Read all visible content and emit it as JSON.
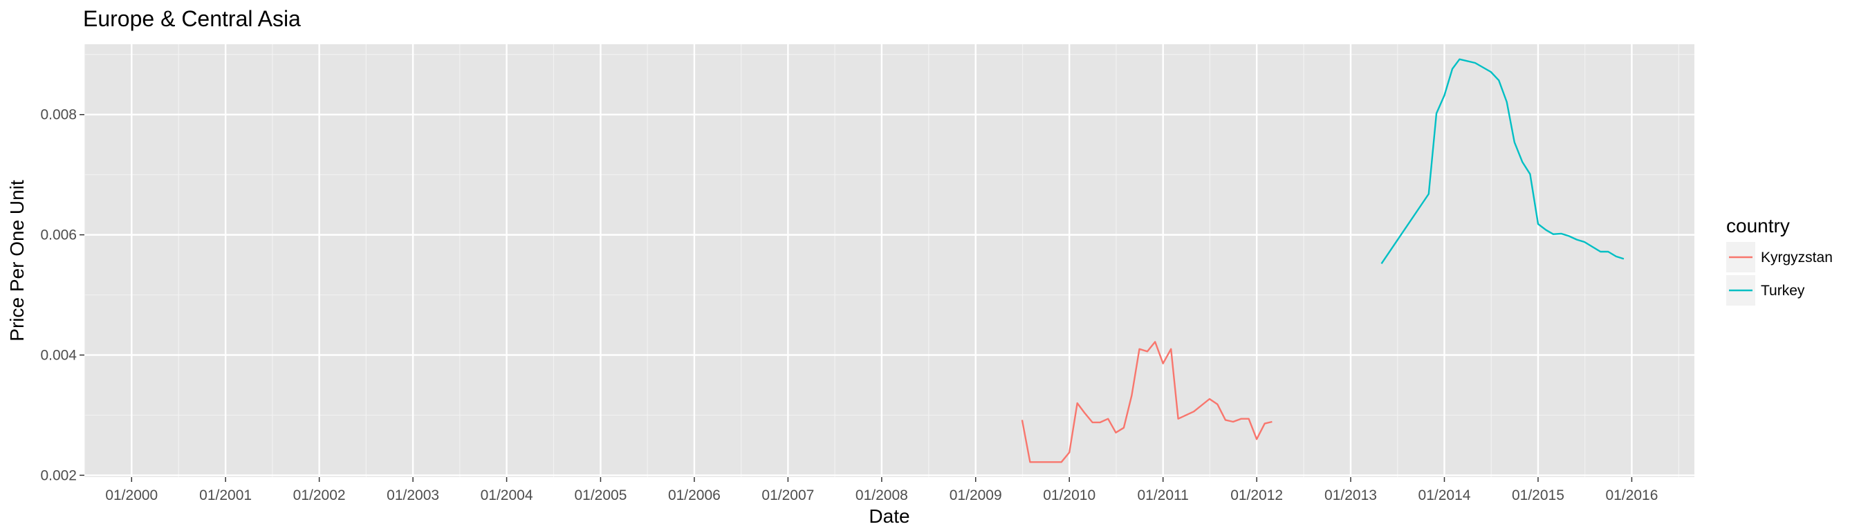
{
  "chart_data": {
    "type": "line",
    "title": "Europe & Central Asia",
    "xlabel": "Date",
    "ylabel": "Price Per One Unit",
    "xlim": [
      "1999-07-01",
      "2016-09-01"
    ],
    "ylim": [
      0.00197,
      0.00917
    ],
    "x_ticks": [
      "01/2000",
      "01/2001",
      "01/2002",
      "01/2003",
      "01/2004",
      "01/2005",
      "01/2006",
      "01/2007",
      "01/2008",
      "01/2009",
      "01/2010",
      "01/2011",
      "01/2012",
      "01/2013",
      "01/2014",
      "01/2015",
      "01/2016"
    ],
    "y_ticks": [
      "0.002",
      "0.004",
      "0.006",
      "0.008"
    ],
    "grid": true,
    "legend": {
      "title": "country",
      "position": "right"
    },
    "series": [
      {
        "name": "Kyrgyzstan",
        "color": "#F8766D",
        "points": [
          [
            "2009-07-01",
            0.00292
          ],
          [
            "2009-08-01",
            0.00222
          ],
          [
            "2009-09-01",
            0.00222
          ],
          [
            "2009-10-01",
            0.00222
          ],
          [
            "2009-11-01",
            0.00222
          ],
          [
            "2009-12-01",
            0.00222
          ],
          [
            "2010-01-01",
            0.00238
          ],
          [
            "2010-02-01",
            0.0032
          ],
          [
            "2010-03-01",
            0.00304
          ],
          [
            "2010-04-01",
            0.00288
          ],
          [
            "2010-05-01",
            0.00288
          ],
          [
            "2010-06-01",
            0.00294
          ],
          [
            "2010-07-01",
            0.00271
          ],
          [
            "2010-08-01",
            0.00279
          ],
          [
            "2010-09-01",
            0.00333
          ],
          [
            "2010-10-01",
            0.0041
          ],
          [
            "2010-11-01",
            0.00406
          ],
          [
            "2010-12-01",
            0.00422
          ],
          [
            "2011-01-01",
            0.00386
          ],
          [
            "2011-02-01",
            0.0041
          ],
          [
            "2011-03-01",
            0.00294
          ],
          [
            "2011-05-01",
            0.00306
          ],
          [
            "2011-07-01",
            0.00327
          ],
          [
            "2011-08-01",
            0.00318
          ],
          [
            "2011-09-01",
            0.00292
          ],
          [
            "2011-10-01",
            0.00289
          ],
          [
            "2011-11-01",
            0.00294
          ],
          [
            "2011-12-01",
            0.00294
          ],
          [
            "2012-01-01",
            0.0026
          ],
          [
            "2012-02-01",
            0.00286
          ],
          [
            "2012-03-01",
            0.00289
          ]
        ]
      },
      {
        "name": "Turkey",
        "color": "#00BFC4",
        "points": [
          [
            "2013-05-01",
            0.00552
          ],
          [
            "2013-11-01",
            0.00668
          ],
          [
            "2013-12-01",
            0.00802
          ],
          [
            "2014-01-01",
            0.00832
          ],
          [
            "2014-02-01",
            0.00876
          ],
          [
            "2014-03-01",
            0.00892
          ],
          [
            "2014-05-01",
            0.00886
          ],
          [
            "2014-07-01",
            0.00871
          ],
          [
            "2014-08-01",
            0.00857
          ],
          [
            "2014-09-01",
            0.00821
          ],
          [
            "2014-10-01",
            0.00754
          ],
          [
            "2014-11-01",
            0.00721
          ],
          [
            "2014-12-01",
            0.00701
          ],
          [
            "2015-01-01",
            0.00618
          ],
          [
            "2015-02-01",
            0.00608
          ],
          [
            "2015-03-01",
            0.00601
          ],
          [
            "2015-04-01",
            0.00602
          ],
          [
            "2015-05-01",
            0.00598
          ],
          [
            "2015-06-01",
            0.00592
          ],
          [
            "2015-07-01",
            0.00588
          ],
          [
            "2015-08-01",
            0.0058
          ],
          [
            "2015-09-01",
            0.00572
          ],
          [
            "2015-10-01",
            0.00572
          ],
          [
            "2015-11-01",
            0.00564
          ],
          [
            "2015-12-01",
            0.0056
          ]
        ]
      }
    ]
  }
}
